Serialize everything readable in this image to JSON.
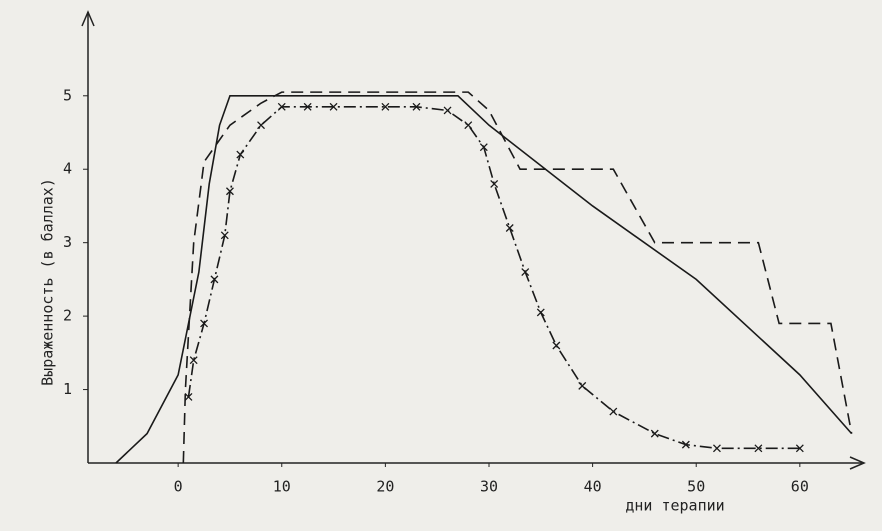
{
  "chart_data": {
    "type": "line",
    "xlabel": "дни терапии",
    "ylabel": "Выраженность (в баллах)",
    "xlim": [
      -8.7,
      66
    ],
    "ylim": [
      0,
      6.1
    ],
    "xticks": [
      0,
      10,
      20,
      30,
      40,
      50,
      60
    ],
    "yticks": [
      1,
      2,
      3,
      4,
      5
    ],
    "series": [
      {
        "style": "solid",
        "color": "#1a1a1a",
        "x": [
          -6,
          -3,
          0,
          2,
          3,
          4,
          5,
          27,
          30,
          40,
          50,
          60,
          65
        ],
        "values": [
          0,
          0.4,
          1.2,
          2.6,
          3.8,
          4.6,
          5,
          5,
          4.6,
          3.5,
          2.5,
          1.2,
          0.4
        ]
      },
      {
        "style": "dashed",
        "color": "#1a1a1a",
        "x": [
          0.5,
          0.7,
          1.5,
          2.5,
          5,
          8,
          10,
          28,
          30,
          33,
          42,
          46,
          56,
          58,
          63,
          65
        ],
        "values": [
          0,
          1,
          3,
          4.1,
          4.6,
          4.9,
          5.05,
          5.05,
          4.8,
          4,
          4,
          3,
          3,
          1.9,
          1.9,
          0.4
        ]
      },
      {
        "style": "dashdot",
        "marker": "x",
        "color": "#1a1a1a",
        "x": [
          1,
          1.5,
          2.5,
          3.5,
          4.5,
          5,
          6,
          8,
          10,
          12.5,
          15,
          20,
          23,
          26,
          28,
          29.5,
          30.5,
          32,
          33.5,
          35,
          36.5,
          39,
          42,
          46,
          49,
          52,
          56,
          60
        ],
        "values": [
          0.9,
          1.4,
          1.9,
          2.5,
          3.1,
          3.7,
          4.2,
          4.6,
          4.85,
          4.85,
          4.85,
          4.85,
          4.85,
          4.8,
          4.6,
          4.3,
          3.8,
          3.2,
          2.6,
          2.05,
          1.6,
          1.05,
          0.7,
          0.4,
          0.25,
          0.2,
          0.2,
          0.2
        ]
      }
    ]
  }
}
